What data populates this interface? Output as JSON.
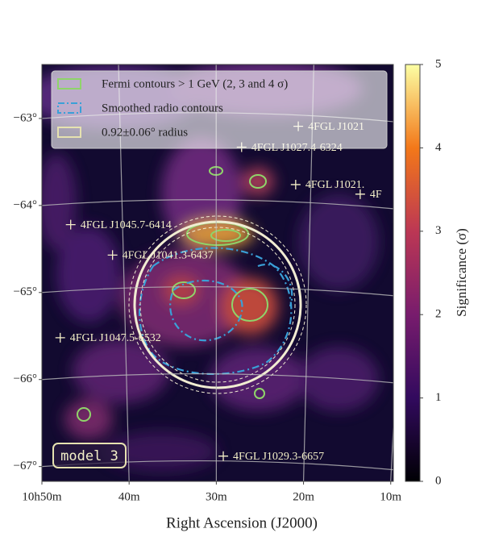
{
  "chart_data": {
    "type": "skymap",
    "xlabel": "Right Ascension (J2000)",
    "colorbar_label": "Significance (σ)",
    "xlim": [
      50.0,
      9.7
    ],
    "ylim": [
      -67.17,
      -62.38
    ],
    "xticks": [
      {
        "value": 50,
        "label": "10h50m"
      },
      {
        "value": 40,
        "label": "40m"
      },
      {
        "value": 30,
        "label": "30m"
      },
      {
        "value": 20,
        "label": "20m"
      },
      {
        "value": 10,
        "label": "10m"
      }
    ],
    "yticks": [
      {
        "value": -63,
        "label": "−63°"
      },
      {
        "value": -64,
        "label": "−64°"
      },
      {
        "value": -65,
        "label": "−65°"
      },
      {
        "value": -66,
        "label": "−66°"
      },
      {
        "value": -67,
        "label": "−67°"
      }
    ],
    "clim": [
      0,
      5
    ],
    "cticks": [
      0,
      1,
      2,
      3,
      4,
      5
    ],
    "grid": true,
    "legend": [
      "Fermi contours > 1 GeV (2, 3 and 4 σ)",
      "Smoothed radio contours",
      "0.92±0.06° radius"
    ],
    "model_label": "model 3",
    "sources": [
      {
        "name": "4FGL J1021",
        "ra": 20.6,
        "dec": -63.09
      },
      {
        "name": "4FGL J1027.4-6324",
        "ra": 27.1,
        "dec": -63.33
      },
      {
        "name": "4FGL J1021.",
        "ra": 20.9,
        "dec": -63.76
      },
      {
        "name": "4F",
        "ra": 13.5,
        "dec": -63.87
      },
      {
        "name": "4FGL J1045.7-6414",
        "ra": 46.7,
        "dec": -64.22
      },
      {
        "name": "4FGL J1041.3-6437",
        "ra": 41.9,
        "dec": -64.57
      },
      {
        "name": "4FGL J1047.5-6532",
        "ra": 47.9,
        "dec": -65.52
      },
      {
        "name": "4FGL J1029.3-6657",
        "ra": 29.2,
        "dec": -66.88
      }
    ]
  }
}
